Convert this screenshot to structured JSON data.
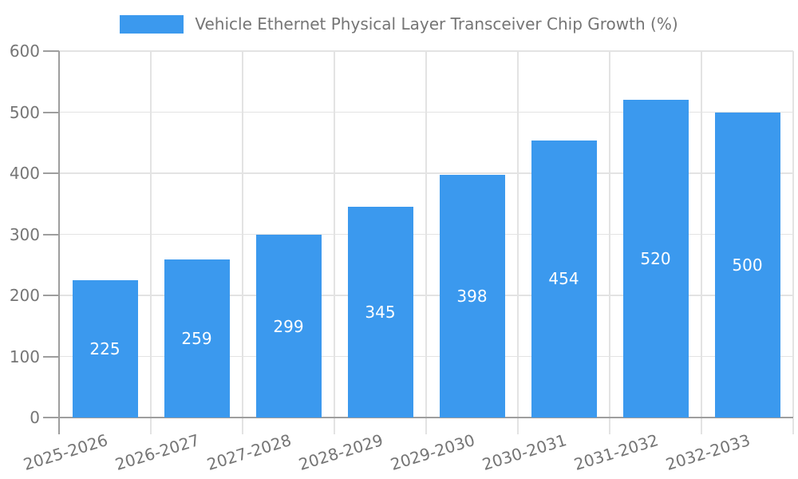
{
  "chart_data": {
    "type": "bar",
    "title": "Vehicle Ethernet Physical Layer Transceiver Chip Growth (%)",
    "categories": [
      "2025-2026",
      "2026-2027",
      "2027-2028",
      "2028-2029",
      "2029-2030",
      "2030-2031",
      "2031-2032",
      "2032-2033"
    ],
    "series": [
      {
        "name": "Vehicle Ethernet Physical Layer Transceiver Chip Growth (%)",
        "values": [
          225,
          259,
          299,
          345,
          398,
          454,
          520,
          500
        ]
      }
    ],
    "xlabel": "",
    "ylabel": "",
    "ylim": [
      0,
      600
    ],
    "yticks": [
      0,
      100,
      200,
      300,
      400,
      500,
      600
    ],
    "grid": "horizontal-and-vertical",
    "legend_position": "top-center",
    "value_label_position": "inside-center",
    "x_tick_rotation_deg": -17
  },
  "colors": {
    "bar": "#3B99EE",
    "label_text": "#757575",
    "value_label": "#FFFFFF",
    "axis": "#9E9E9E",
    "grid": "#E3E3E3",
    "background": "#FFFFFF"
  }
}
